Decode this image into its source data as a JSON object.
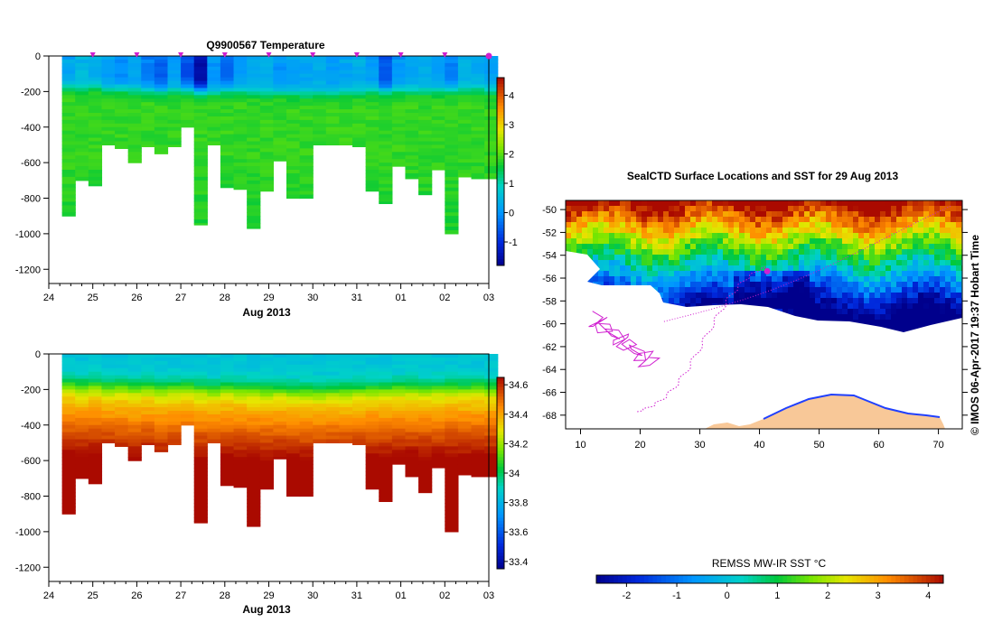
{
  "colors": {
    "background": "#ffffff",
    "axis": "#000000",
    "cast_marker": "#d020d0",
    "track": "#d020d0",
    "land": "#f8c898",
    "ice_edge": "#2040ff"
  },
  "icons": {
    "cast_marker": "triangle-down-marker",
    "current_position": "magenta-dot"
  },
  "chart_data": [
    {
      "id": "temperature_section",
      "type": "heatmap",
      "title": "Q9900567  Temperature",
      "xlabel": "Aug 2013",
      "ylabel": "",
      "x_ticks": [
        "24",
        "25",
        "26",
        "27",
        "28",
        "29",
        "30",
        "31",
        "01",
        "02",
        "03"
      ],
      "x_range_days": [
        24,
        34
      ],
      "y_ticks": [
        0,
        -200,
        -400,
        -600,
        -800,
        -1000,
        -1200
      ],
      "ylim": [
        -1280,
        0
      ],
      "cast_marker_days": [
        25,
        26,
        27,
        28,
        29,
        30,
        31,
        32,
        33,
        34
      ],
      "colorbar": {
        "min": -1.8,
        "max": 4.6,
        "ticks": [
          4,
          3,
          2,
          1,
          0,
          -1
        ]
      },
      "profiles": {
        "day_offsets": [
          0.3,
          0.6,
          0.9,
          1.2,
          1.5,
          1.8,
          2.1,
          2.4,
          2.7,
          3.0,
          3.3,
          3.6,
          3.9,
          4.2,
          4.5,
          4.8,
          5.1,
          5.4,
          5.7,
          6.0,
          6.3,
          6.6,
          6.9,
          7.2,
          7.5,
          7.8,
          8.1,
          8.4,
          8.7,
          9.0,
          9.3,
          9.6,
          9.9
        ],
        "max_depth_m": [
          -900,
          -700,
          -730,
          -500,
          -520,
          -600,
          -510,
          -550,
          -510,
          -400,
          -950,
          -500,
          -740,
          -750,
          -970,
          -760,
          -590,
          -800,
          -800,
          -500,
          -500,
          -500,
          -510,
          -760,
          -830,
          -620,
          -690,
          -780,
          -640,
          -1000,
          -680,
          -690,
          -690
        ],
        "surface_temp": [
          0.2,
          0.5,
          0.3,
          0.1,
          -0.1,
          0.2,
          -0.3,
          -0.5,
          0.1,
          -0.7,
          -1.5,
          0.0,
          -0.4,
          0.1,
          0.2,
          0.3,
          0.0,
          0.1,
          0.2,
          0.3,
          0.1,
          0.2,
          0.3,
          0.1,
          -0.6,
          0.0,
          0.2,
          0.3,
          0.1,
          -0.2,
          0.4,
          0.3,
          0.1
        ],
        "max_temp": 1.8,
        "thermocline_depth_m": [
          160,
          170,
          165,
          175,
          170,
          180,
          175,
          185,
          180,
          175,
          185,
          190,
          180,
          185,
          190,
          195,
          190,
          195,
          200,
          200,
          195,
          195,
          190,
          185,
          185,
          180,
          180,
          185,
          180,
          175,
          180,
          175,
          180
        ]
      }
    },
    {
      "id": "salinity_section",
      "type": "heatmap",
      "title": "",
      "xlabel": "Aug 2013",
      "ylabel": "",
      "x_ticks": [
        "24",
        "25",
        "26",
        "27",
        "28",
        "29",
        "30",
        "31",
        "01",
        "02",
        "03"
      ],
      "x_range_days": [
        24,
        34
      ],
      "y_ticks": [
        0,
        -200,
        -400,
        -600,
        -800,
        -1000,
        -1200
      ],
      "ylim": [
        -1280,
        0
      ],
      "colorbar": {
        "min": 33.35,
        "max": 34.65,
        "ticks": [
          34.6,
          34.4,
          34.2,
          34,
          33.8,
          33.6,
          33.4
        ]
      },
      "profiles": {
        "surface_sal": 33.85,
        "deep_sal": 34.68,
        "halocline_depth_m": [
          150,
          160,
          155,
          165,
          160,
          170,
          165,
          175,
          170,
          165,
          175,
          180,
          170,
          175,
          180,
          185,
          180,
          185,
          190,
          190,
          185,
          185,
          180,
          175,
          175,
          170,
          170,
          175,
          170,
          165,
          170,
          165,
          170
        ]
      }
    },
    {
      "id": "sst_map",
      "type": "heatmap",
      "title": "SealCTD Surface Locations and SST for 29 Aug 2013",
      "xlabel": "",
      "ylabel": "",
      "x_ticks": [
        10,
        20,
        30,
        40,
        50,
        60,
        70
      ],
      "xlim": [
        7.5,
        74
      ],
      "y_ticks": [
        -50,
        -52,
        -54,
        -56,
        -58,
        -60,
        -62,
        -64,
        -66,
        -68
      ],
      "ylim": [
        -69.2,
        -49.2
      ],
      "current_position": [
        41.3,
        -55.4
      ],
      "colorbar": {
        "label": "REMSS MW-IR SST °C",
        "min": -2.6,
        "max": 4.3,
        "ticks": [
          -2,
          -1,
          0,
          1,
          2,
          3,
          4
        ]
      }
    }
  ],
  "credit": "© IMOS 06-Apr-2017 19:37 Hobart Time"
}
